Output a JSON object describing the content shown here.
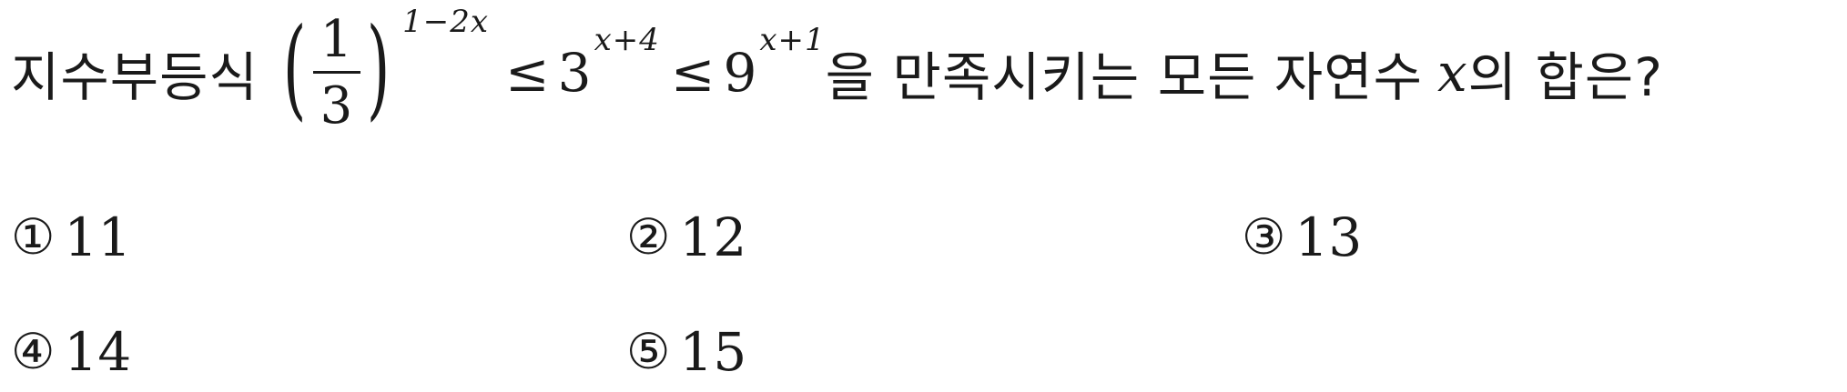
{
  "question": {
    "prefix": "지수부등식",
    "base_fraction": {
      "numerator": "1",
      "denominator": "3",
      "exponent": "1−2x"
    },
    "relation_1": "≤",
    "middle_base": "3",
    "middle_exponent": "x+4",
    "relation_2": "≤",
    "right_base": "9",
    "right_exponent": "x+1",
    "suffix_1": "을 만족시키는 모든 자연수",
    "variable": "x",
    "suffix_2": "의 합은?"
  },
  "choices": [
    {
      "marker": "①",
      "value": "11"
    },
    {
      "marker": "②",
      "value": "12"
    },
    {
      "marker": "③",
      "value": "13"
    },
    {
      "marker": "④",
      "value": "14"
    },
    {
      "marker": "⑤",
      "value": "15"
    }
  ]
}
